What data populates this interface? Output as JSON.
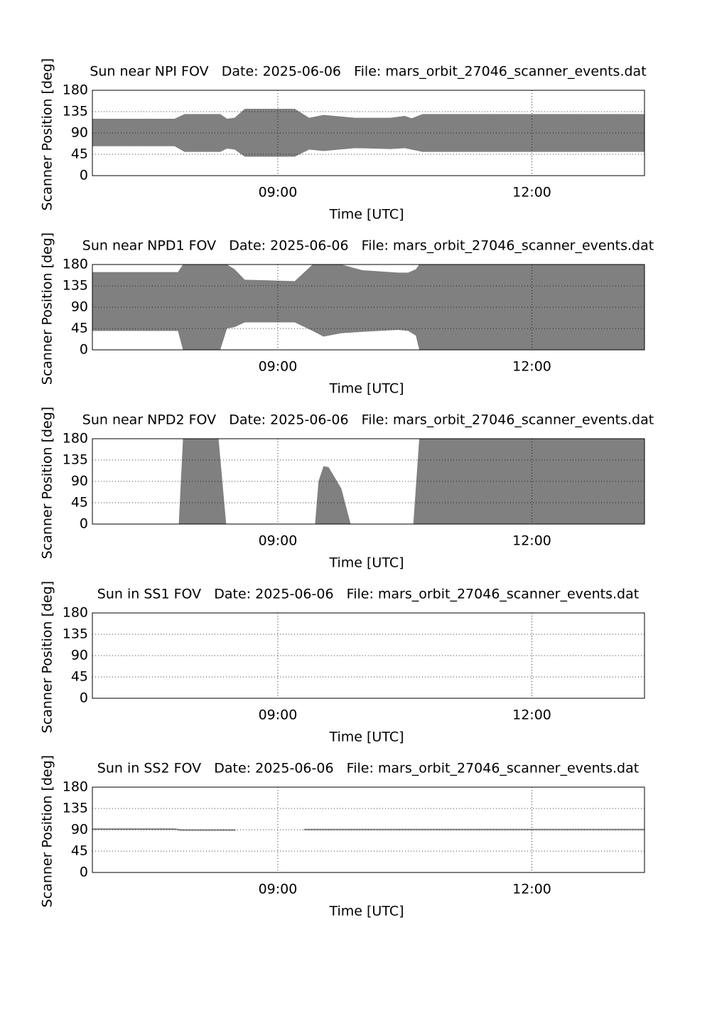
{
  "chart_data": [
    {
      "type": "area",
      "title": "Sun near NPI FOV   Date: 2025-06-06   File: mars_orbit_27046_scanner_events.dat",
      "xlabel": "Time [UTC]",
      "ylabel": "Scanner Position [deg]",
      "color": "#808080",
      "grid": true,
      "xlim": [
        6.81,
        13.33
      ],
      "xticks": [
        {
          "value": 9,
          "label": "09:00"
        },
        {
          "value": 12,
          "label": "12:00"
        }
      ],
      "ylim": [
        0,
        180
      ],
      "yticks": [
        0,
        45,
        90,
        135,
        180
      ],
      "x": [
        6.81,
        7.78,
        7.9,
        8.32,
        8.4,
        8.49,
        8.61,
        9.2,
        9.37,
        9.54,
        9.91,
        10.33,
        10.5,
        10.58,
        10.71,
        13.33
      ],
      "high": [
        120,
        120,
        130,
        130,
        120,
        122,
        141,
        141,
        122,
        128,
        122,
        122,
        126,
        121,
        130,
        130
      ],
      "low": [
        62,
        62,
        50,
        50,
        57,
        55,
        40,
        40,
        55,
        52,
        58,
        56,
        58,
        55,
        50,
        50
      ]
    },
    {
      "type": "area",
      "title": "Sun near NPD1 FOV   Date: 2025-06-06   File: mars_orbit_27046_scanner_events.dat",
      "xlabel": "Time [UTC]",
      "ylabel": "Scanner Position [deg]",
      "color": "#808080",
      "grid": true,
      "xlim": [
        6.81,
        13.33
      ],
      "xticks": [
        {
          "value": 9,
          "label": "09:00"
        },
        {
          "value": 12,
          "label": "12:00"
        }
      ],
      "ylim": [
        0,
        180
      ],
      "yticks": [
        0,
        45,
        90,
        135,
        180
      ],
      "x": [
        6.81,
        7.82,
        7.88,
        8.32,
        8.4,
        8.49,
        8.61,
        9.2,
        9.41,
        9.54,
        9.75,
        10.0,
        10.42,
        10.54,
        10.63,
        10.67,
        13.33
      ],
      "high": [
        164,
        164,
        180,
        180,
        180,
        170,
        148,
        145,
        180,
        180,
        180,
        168,
        163,
        163,
        170,
        180,
        180
      ],
      "low": [
        40,
        40,
        0,
        0,
        45,
        48,
        58,
        58,
        40,
        28,
        35,
        38,
        42,
        40,
        30,
        0,
        0
      ]
    },
    {
      "type": "area",
      "title": "Sun near NPD2 FOV   Date: 2025-06-06   File: mars_orbit_27046_scanner_events.dat",
      "xlabel": "Time [UTC]",
      "ylabel": "Scanner Position [deg]",
      "color": "#808080",
      "grid": true,
      "xlim": [
        6.81,
        13.33
      ],
      "xticks": [
        {
          "value": 9,
          "label": "09:00"
        },
        {
          "value": 12,
          "label": "12:00"
        }
      ],
      "ylim": [
        0,
        180
      ],
      "yticks": [
        0,
        45,
        90,
        135,
        180
      ],
      "x": [
        7.83,
        7.88,
        8.3,
        8.39,
        8.6,
        9.44,
        9.48,
        9.54,
        9.6,
        9.75,
        9.86,
        10.2,
        10.6,
        10.67,
        13.33
      ],
      "high": [
        0,
        180,
        180,
        0,
        null,
        0,
        90,
        122,
        120,
        75,
        0,
        null,
        0,
        180,
        180
      ],
      "low": [
        0,
        0,
        0,
        0,
        null,
        0,
        0,
        0,
        0,
        0,
        0,
        null,
        0,
        0,
        0
      ]
    },
    {
      "type": "area",
      "title": "Sun in SS1 FOV   Date: 2025-06-06   File: mars_orbit_27046_scanner_events.dat",
      "xlabel": "Time [UTC]",
      "ylabel": "Scanner Position [deg]",
      "color": "#808080",
      "grid": true,
      "xlim": [
        6.81,
        13.33
      ],
      "xticks": [
        {
          "value": 9,
          "label": "09:00"
        },
        {
          "value": 12,
          "label": "12:00"
        }
      ],
      "ylim": [
        0,
        180
      ],
      "yticks": [
        0,
        45,
        90,
        135,
        180
      ],
      "x": [],
      "high": [],
      "low": []
    },
    {
      "type": "area",
      "title": "Sun in SS2 FOV   Date: 2025-06-06   File: mars_orbit_27046_scanner_events.dat",
      "xlabel": "Time [UTC]",
      "ylabel": "Scanner Position [deg]",
      "color": "#808080",
      "grid": true,
      "xlim": [
        6.81,
        13.33
      ],
      "xticks": [
        {
          "value": 9,
          "label": "09:00"
        },
        {
          "value": 12,
          "label": "12:00"
        }
      ],
      "ylim": [
        0,
        180
      ],
      "yticks": [
        0,
        45,
        90,
        135,
        180
      ],
      "x": [
        6.81,
        7.78,
        7.86,
        8.5,
        8.9,
        9.31,
        13.33
      ],
      "high": [
        93,
        93,
        91,
        91,
        null,
        92,
        92
      ],
      "low": [
        90,
        90,
        88,
        88,
        null,
        89,
        89
      ]
    }
  ]
}
